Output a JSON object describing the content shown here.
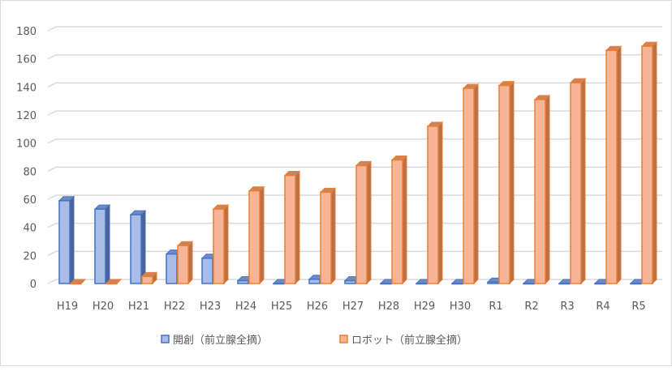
{
  "chart_data": {
    "type": "bar",
    "title": "",
    "xlabel": "",
    "ylabel": "",
    "ylim": [
      0,
      180
    ],
    "yticks": [
      0,
      20,
      40,
      60,
      80,
      100,
      120,
      140,
      160,
      180
    ],
    "grid": true,
    "legend_position": "bottom",
    "categories": [
      "H19",
      "H20",
      "H21",
      "H22",
      "H23",
      "H24",
      "H25",
      "H26",
      "H27",
      "H28",
      "H29",
      "H30",
      "R1",
      "R2",
      "R3",
      "R4",
      "R5"
    ],
    "series": [
      {
        "name": "開創（前立腺全摘）",
        "color": "#4472c4",
        "fill": "#a9bce6",
        "values": [
          59,
          53,
          49,
          21,
          18,
          2,
          0,
          3,
          2,
          0,
          0,
          0,
          1,
          0,
          0,
          0,
          0
        ]
      },
      {
        "name": "ロボット（前立腺全摘）",
        "color": "#ed7d31",
        "fill": "#f8b596",
        "values": [
          0,
          0,
          5,
          27,
          53,
          66,
          77,
          65,
          84,
          88,
          112,
          139,
          141,
          131,
          143,
          166,
          169
        ]
      }
    ]
  }
}
